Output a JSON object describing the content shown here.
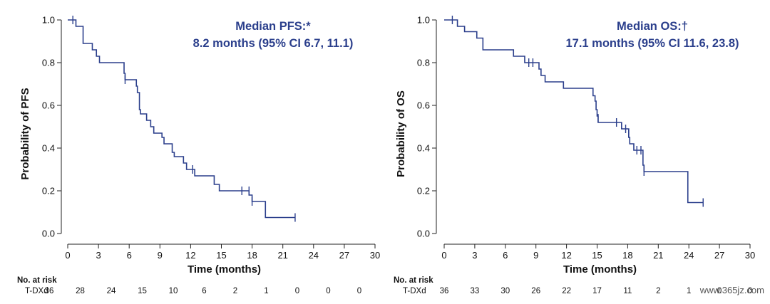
{
  "chart_data": [
    {
      "type": "line",
      "title": "",
      "annotation": [
        "Median PFS:*",
        "8.2 months (95% CI 6.7, 11.1)"
      ],
      "xlabel": "Time (months)",
      "ylabel": "Probability of PFS",
      "xlim": [
        0,
        30
      ],
      "ylim": [
        0,
        1.0
      ],
      "xticks": [
        "0",
        "3",
        "6",
        "9",
        "12",
        "15",
        "18",
        "21",
        "24",
        "27",
        "30"
      ],
      "yticks": [
        "0.0",
        "0.2",
        "0.4",
        "0.6",
        "0.8",
        "1.0"
      ],
      "series": [
        {
          "color": "#2b3f8c",
          "steps": [
            [
              0,
              1.0
            ],
            [
              0.8,
              0.97
            ],
            [
              1.5,
              0.89
            ],
            [
              2.4,
              0.86
            ],
            [
              2.8,
              0.83
            ],
            [
              3.1,
              0.8
            ],
            [
              5.5,
              0.75
            ],
            [
              5.6,
              0.72
            ],
            [
              6.7,
              0.69
            ],
            [
              6.8,
              0.66
            ],
            [
              7.0,
              0.58
            ],
            [
              7.1,
              0.56
            ],
            [
              7.7,
              0.53
            ],
            [
              8.1,
              0.5
            ],
            [
              8.4,
              0.47
            ],
            [
              9.2,
              0.45
            ],
            [
              9.4,
              0.42
            ],
            [
              10.2,
              0.38
            ],
            [
              10.4,
              0.36
            ],
            [
              11.3,
              0.33
            ],
            [
              11.6,
              0.3
            ],
            [
              12.4,
              0.27
            ],
            [
              14.3,
              0.23
            ],
            [
              14.8,
              0.2
            ],
            [
              17.7,
              0.18
            ],
            [
              18.0,
              0.15
            ],
            [
              19.3,
              0.075
            ],
            [
              22.2,
              0.075
            ]
          ],
          "censored": [
            [
              0.5,
              1.0
            ],
            [
              5.6,
              0.72
            ],
            [
              12.2,
              0.3
            ],
            [
              17.0,
              0.2
            ],
            [
              17.7,
              0.2
            ],
            [
              18.0,
              0.15
            ],
            [
              22.2,
              0.075
            ]
          ]
        }
      ],
      "risk_table": {
        "header": "No. at risk",
        "row_label": "T-DXd",
        "times": [
          0,
          3,
          6,
          9,
          12,
          15,
          18,
          21,
          24,
          27,
          30
        ],
        "values": [
          "36",
          "28",
          "24",
          "15",
          "10",
          "6",
          "2",
          "1",
          "0",
          "0",
          "0"
        ]
      }
    },
    {
      "type": "line",
      "title": "",
      "annotation": [
        "Median OS:†",
        "17.1 months (95% CI 11.6, 23.8)"
      ],
      "xlabel": "Time (months)",
      "ylabel": "Probability of OS",
      "xlim": [
        0,
        30
      ],
      "ylim": [
        0,
        1.0
      ],
      "xticks": [
        "0",
        "3",
        "6",
        "9",
        "12",
        "15",
        "18",
        "21",
        "24",
        "27",
        "30"
      ],
      "yticks": [
        "0.0",
        "0.2",
        "0.4",
        "0.6",
        "0.8",
        "1.0"
      ],
      "series": [
        {
          "color": "#2b3f8c",
          "steps": [
            [
              0,
              1.0
            ],
            [
              1.3,
              0.97
            ],
            [
              2.0,
              0.945
            ],
            [
              3.2,
              0.915
            ],
            [
              3.8,
              0.86
            ],
            [
              6.8,
              0.83
            ],
            [
              7.9,
              0.8
            ],
            [
              8.9,
              0.8
            ],
            [
              9.3,
              0.77
            ],
            [
              9.5,
              0.74
            ],
            [
              9.9,
              0.71
            ],
            [
              11.7,
              0.68
            ],
            [
              14.6,
              0.645
            ],
            [
              14.8,
              0.62
            ],
            [
              14.9,
              0.58
            ],
            [
              15.0,
              0.55
            ],
            [
              15.1,
              0.52
            ],
            [
              16.9,
              0.52
            ],
            [
              17.4,
              0.49
            ],
            [
              18.1,
              0.45
            ],
            [
              18.2,
              0.42
            ],
            [
              18.6,
              0.39
            ],
            [
              19.5,
              0.32
            ],
            [
              19.6,
              0.29
            ],
            [
              23.9,
              0.145
            ],
            [
              25.4,
              0.145
            ]
          ],
          "censored": [
            [
              0.8,
              1.0
            ],
            [
              8.3,
              0.8
            ],
            [
              8.7,
              0.8
            ],
            [
              15.1,
              0.54
            ],
            [
              16.9,
              0.52
            ],
            [
              17.8,
              0.49
            ],
            [
              18.1,
              0.47
            ],
            [
              18.9,
              0.39
            ],
            [
              19.3,
              0.39
            ],
            [
              19.6,
              0.29
            ],
            [
              25.4,
              0.145
            ]
          ]
        }
      ],
      "risk_table": {
        "header": "No. at risk",
        "row_label": "T-DXd",
        "times": [
          0,
          3,
          6,
          9,
          12,
          15,
          18,
          21,
          24,
          27,
          30
        ],
        "values": [
          "36",
          "33",
          "30",
          "26",
          "22",
          "17",
          "11",
          "2",
          "1",
          "0",
          "0"
        ]
      }
    }
  ],
  "watermark": "www.365jz.com"
}
